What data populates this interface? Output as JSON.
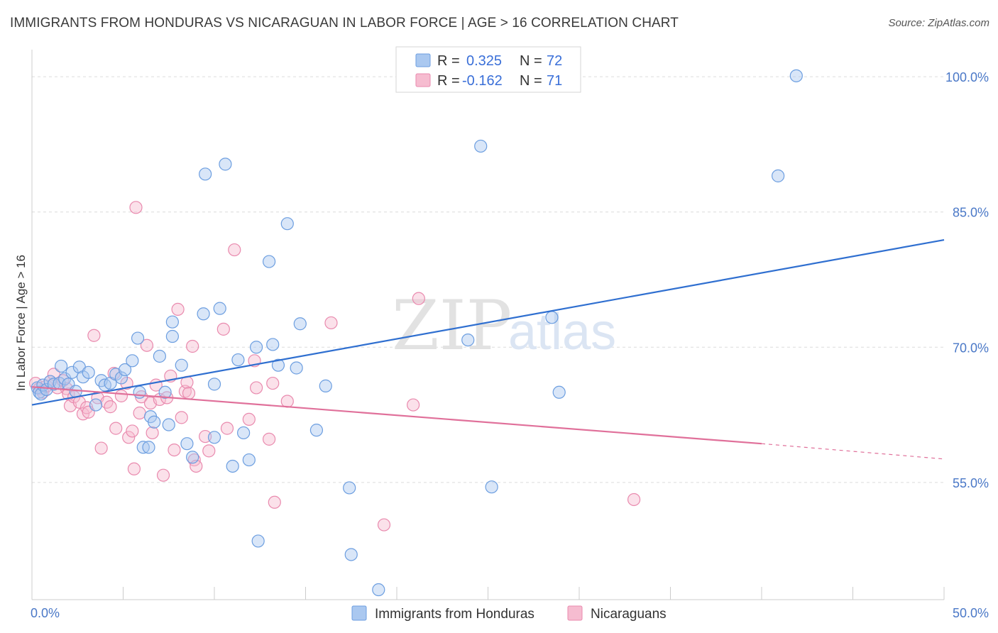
{
  "title": "IMMIGRANTS FROM HONDURAS VS NICARAGUAN IN LABOR FORCE | AGE > 16 CORRELATION CHART",
  "source": "Source: ZipAtlas.com",
  "watermark": {
    "zip": "ZIP",
    "atlas": "atlas"
  },
  "colors": {
    "blue_fill": "#aac8f0",
    "blue_stroke": "#6c9ee0",
    "blue_line": "#2f6fd0",
    "pink_fill": "#f6bcd0",
    "pink_stroke": "#e98aae",
    "pink_line": "#e0709a",
    "grid": "#dcdcdc",
    "tick_text": "#4a78c7"
  },
  "legend": {
    "rows": [
      {
        "r_label": "R =",
        "r_value": "0.325",
        "n_label": "N =",
        "n_value": "72"
      },
      {
        "r_label": "R =",
        "r_value": "-0.162",
        "n_label": "N =",
        "n_value": "71"
      }
    ]
  },
  "chart_data": {
    "type": "scatter",
    "title": "IMMIGRANTS FROM HONDURAS VS NICARAGUAN IN LABOR FORCE | AGE > 16 CORRELATION CHART",
    "xlabel": "",
    "ylabel": "In Labor Force | Age > 16",
    "xlim": [
      0,
      50
    ],
    "ylim": [
      42,
      103
    ],
    "x_tick_labels": [
      "0.0%",
      "50.0%"
    ],
    "y_ticks": [
      55,
      70,
      85,
      100
    ],
    "y_tick_labels": [
      "55.0%",
      "70.0%",
      "85.0%",
      "100.0%"
    ],
    "grid": true,
    "series": [
      {
        "name": "Immigrants from Honduras",
        "color": "blue",
        "R": 0.325,
        "N": 72,
        "trend": {
          "x0": 0,
          "y0": 63.6,
          "x1": 50,
          "y1": 81.9
        },
        "points": [
          [
            0.3,
            65.5
          ],
          [
            0.4,
            65.0
          ],
          [
            0.5,
            64.8
          ],
          [
            0.6,
            65.8
          ],
          [
            0.8,
            65.3
          ],
          [
            1.0,
            66.2
          ],
          [
            1.2,
            65.9
          ],
          [
            1.5,
            66.0
          ],
          [
            1.6,
            67.9
          ],
          [
            1.8,
            66.5
          ],
          [
            2.0,
            65.9
          ],
          [
            2.2,
            67.2
          ],
          [
            2.4,
            65.1
          ],
          [
            2.6,
            67.8
          ],
          [
            2.8,
            66.7
          ],
          [
            3.1,
            67.2
          ],
          [
            3.5,
            63.6
          ],
          [
            3.8,
            66.3
          ],
          [
            4.0,
            65.8
          ],
          [
            4.3,
            66.0
          ],
          [
            4.6,
            67.0
          ],
          [
            4.9,
            66.6
          ],
          [
            5.1,
            67.5
          ],
          [
            5.5,
            68.5
          ],
          [
            5.8,
            71.0
          ],
          [
            5.9,
            65.0
          ],
          [
            6.1,
            58.9
          ],
          [
            6.4,
            58.9
          ],
          [
            6.5,
            62.3
          ],
          [
            6.7,
            61.7
          ],
          [
            7.0,
            69.0
          ],
          [
            7.3,
            65.0
          ],
          [
            7.5,
            61.4
          ],
          [
            7.7,
            72.8
          ],
          [
            7.7,
            71.2
          ],
          [
            8.2,
            68.0
          ],
          [
            8.5,
            59.3
          ],
          [
            8.8,
            57.8
          ],
          [
            9.4,
            73.7
          ],
          [
            9.5,
            89.2
          ],
          [
            10.0,
            60.0
          ],
          [
            10.0,
            65.9
          ],
          [
            10.3,
            74.3
          ],
          [
            10.6,
            90.3
          ],
          [
            11.0,
            56.8
          ],
          [
            11.3,
            68.6
          ],
          [
            11.6,
            60.5
          ],
          [
            11.9,
            57.5
          ],
          [
            12.3,
            70.0
          ],
          [
            12.4,
            48.5
          ],
          [
            13.0,
            79.5
          ],
          [
            13.2,
            70.3
          ],
          [
            13.5,
            68.0
          ],
          [
            14.0,
            83.7
          ],
          [
            14.5,
            67.7
          ],
          [
            14.7,
            72.6
          ],
          [
            15.6,
            60.8
          ],
          [
            16.1,
            65.7
          ],
          [
            17.4,
            54.4
          ],
          [
            17.5,
            47.0
          ],
          [
            19.0,
            43.1
          ],
          [
            23.9,
            70.8
          ],
          [
            24.6,
            92.3
          ],
          [
            25.2,
            54.5
          ],
          [
            28.5,
            73.3
          ],
          [
            28.9,
            65.0
          ],
          [
            40.9,
            89.0
          ],
          [
            41.9,
            100.1
          ]
        ]
      },
      {
        "name": "Nicaraguans",
        "color": "pink",
        "R": -0.162,
        "N": 71,
        "trend": {
          "x0": 0,
          "y0": 65.6,
          "x1": 40,
          "y1": 59.3,
          "dash_x1": 50,
          "dash_y1": 57.6
        },
        "points": [
          [
            0.2,
            66.0
          ],
          [
            0.4,
            65.4
          ],
          [
            0.6,
            65.0
          ],
          [
            0.8,
            65.7
          ],
          [
            1.0,
            66.2
          ],
          [
            1.2,
            67.0
          ],
          [
            1.4,
            65.5
          ],
          [
            1.7,
            66.3
          ],
          [
            1.9,
            65.4
          ],
          [
            2.0,
            64.8
          ],
          [
            2.1,
            63.5
          ],
          [
            2.3,
            64.5
          ],
          [
            2.6,
            63.9
          ],
          [
            2.8,
            62.6
          ],
          [
            3.0,
            63.3
          ],
          [
            3.1,
            62.8
          ],
          [
            3.4,
            71.3
          ],
          [
            3.6,
            64.4
          ],
          [
            3.8,
            58.8
          ],
          [
            4.1,
            63.9
          ],
          [
            4.3,
            63.4
          ],
          [
            4.5,
            67.1
          ],
          [
            4.6,
            61.0
          ],
          [
            4.9,
            64.6
          ],
          [
            5.2,
            66.0
          ],
          [
            5.3,
            60.0
          ],
          [
            5.5,
            60.7
          ],
          [
            5.6,
            56.5
          ],
          [
            5.7,
            85.5
          ],
          [
            5.9,
            62.7
          ],
          [
            6.0,
            64.5
          ],
          [
            6.3,
            70.2
          ],
          [
            6.5,
            63.8
          ],
          [
            6.6,
            60.5
          ],
          [
            6.8,
            65.8
          ],
          [
            7.0,
            64.2
          ],
          [
            7.2,
            55.8
          ],
          [
            7.4,
            64.4
          ],
          [
            7.6,
            66.8
          ],
          [
            7.8,
            58.6
          ],
          [
            8.0,
            74.2
          ],
          [
            8.2,
            62.2
          ],
          [
            8.4,
            65.1
          ],
          [
            8.5,
            66.1
          ],
          [
            8.6,
            64.9
          ],
          [
            8.8,
            70.1
          ],
          [
            8.9,
            57.5
          ],
          [
            9.0,
            56.8
          ],
          [
            9.5,
            60.1
          ],
          [
            9.7,
            58.5
          ],
          [
            10.5,
            72.0
          ],
          [
            10.7,
            61.0
          ],
          [
            11.1,
            80.8
          ],
          [
            11.9,
            62.0
          ],
          [
            12.2,
            68.5
          ],
          [
            12.3,
            65.5
          ],
          [
            13.0,
            59.8
          ],
          [
            13.2,
            66.0
          ],
          [
            13.3,
            52.8
          ],
          [
            14.0,
            64.0
          ],
          [
            16.4,
            72.7
          ],
          [
            19.3,
            50.3
          ],
          [
            20.9,
            63.6
          ],
          [
            21.2,
            75.4
          ],
          [
            33.0,
            53.1
          ]
        ]
      }
    ]
  },
  "bottom_legend": [
    {
      "label": "Immigrants from Honduras"
    },
    {
      "label": "Nicaraguans"
    }
  ]
}
